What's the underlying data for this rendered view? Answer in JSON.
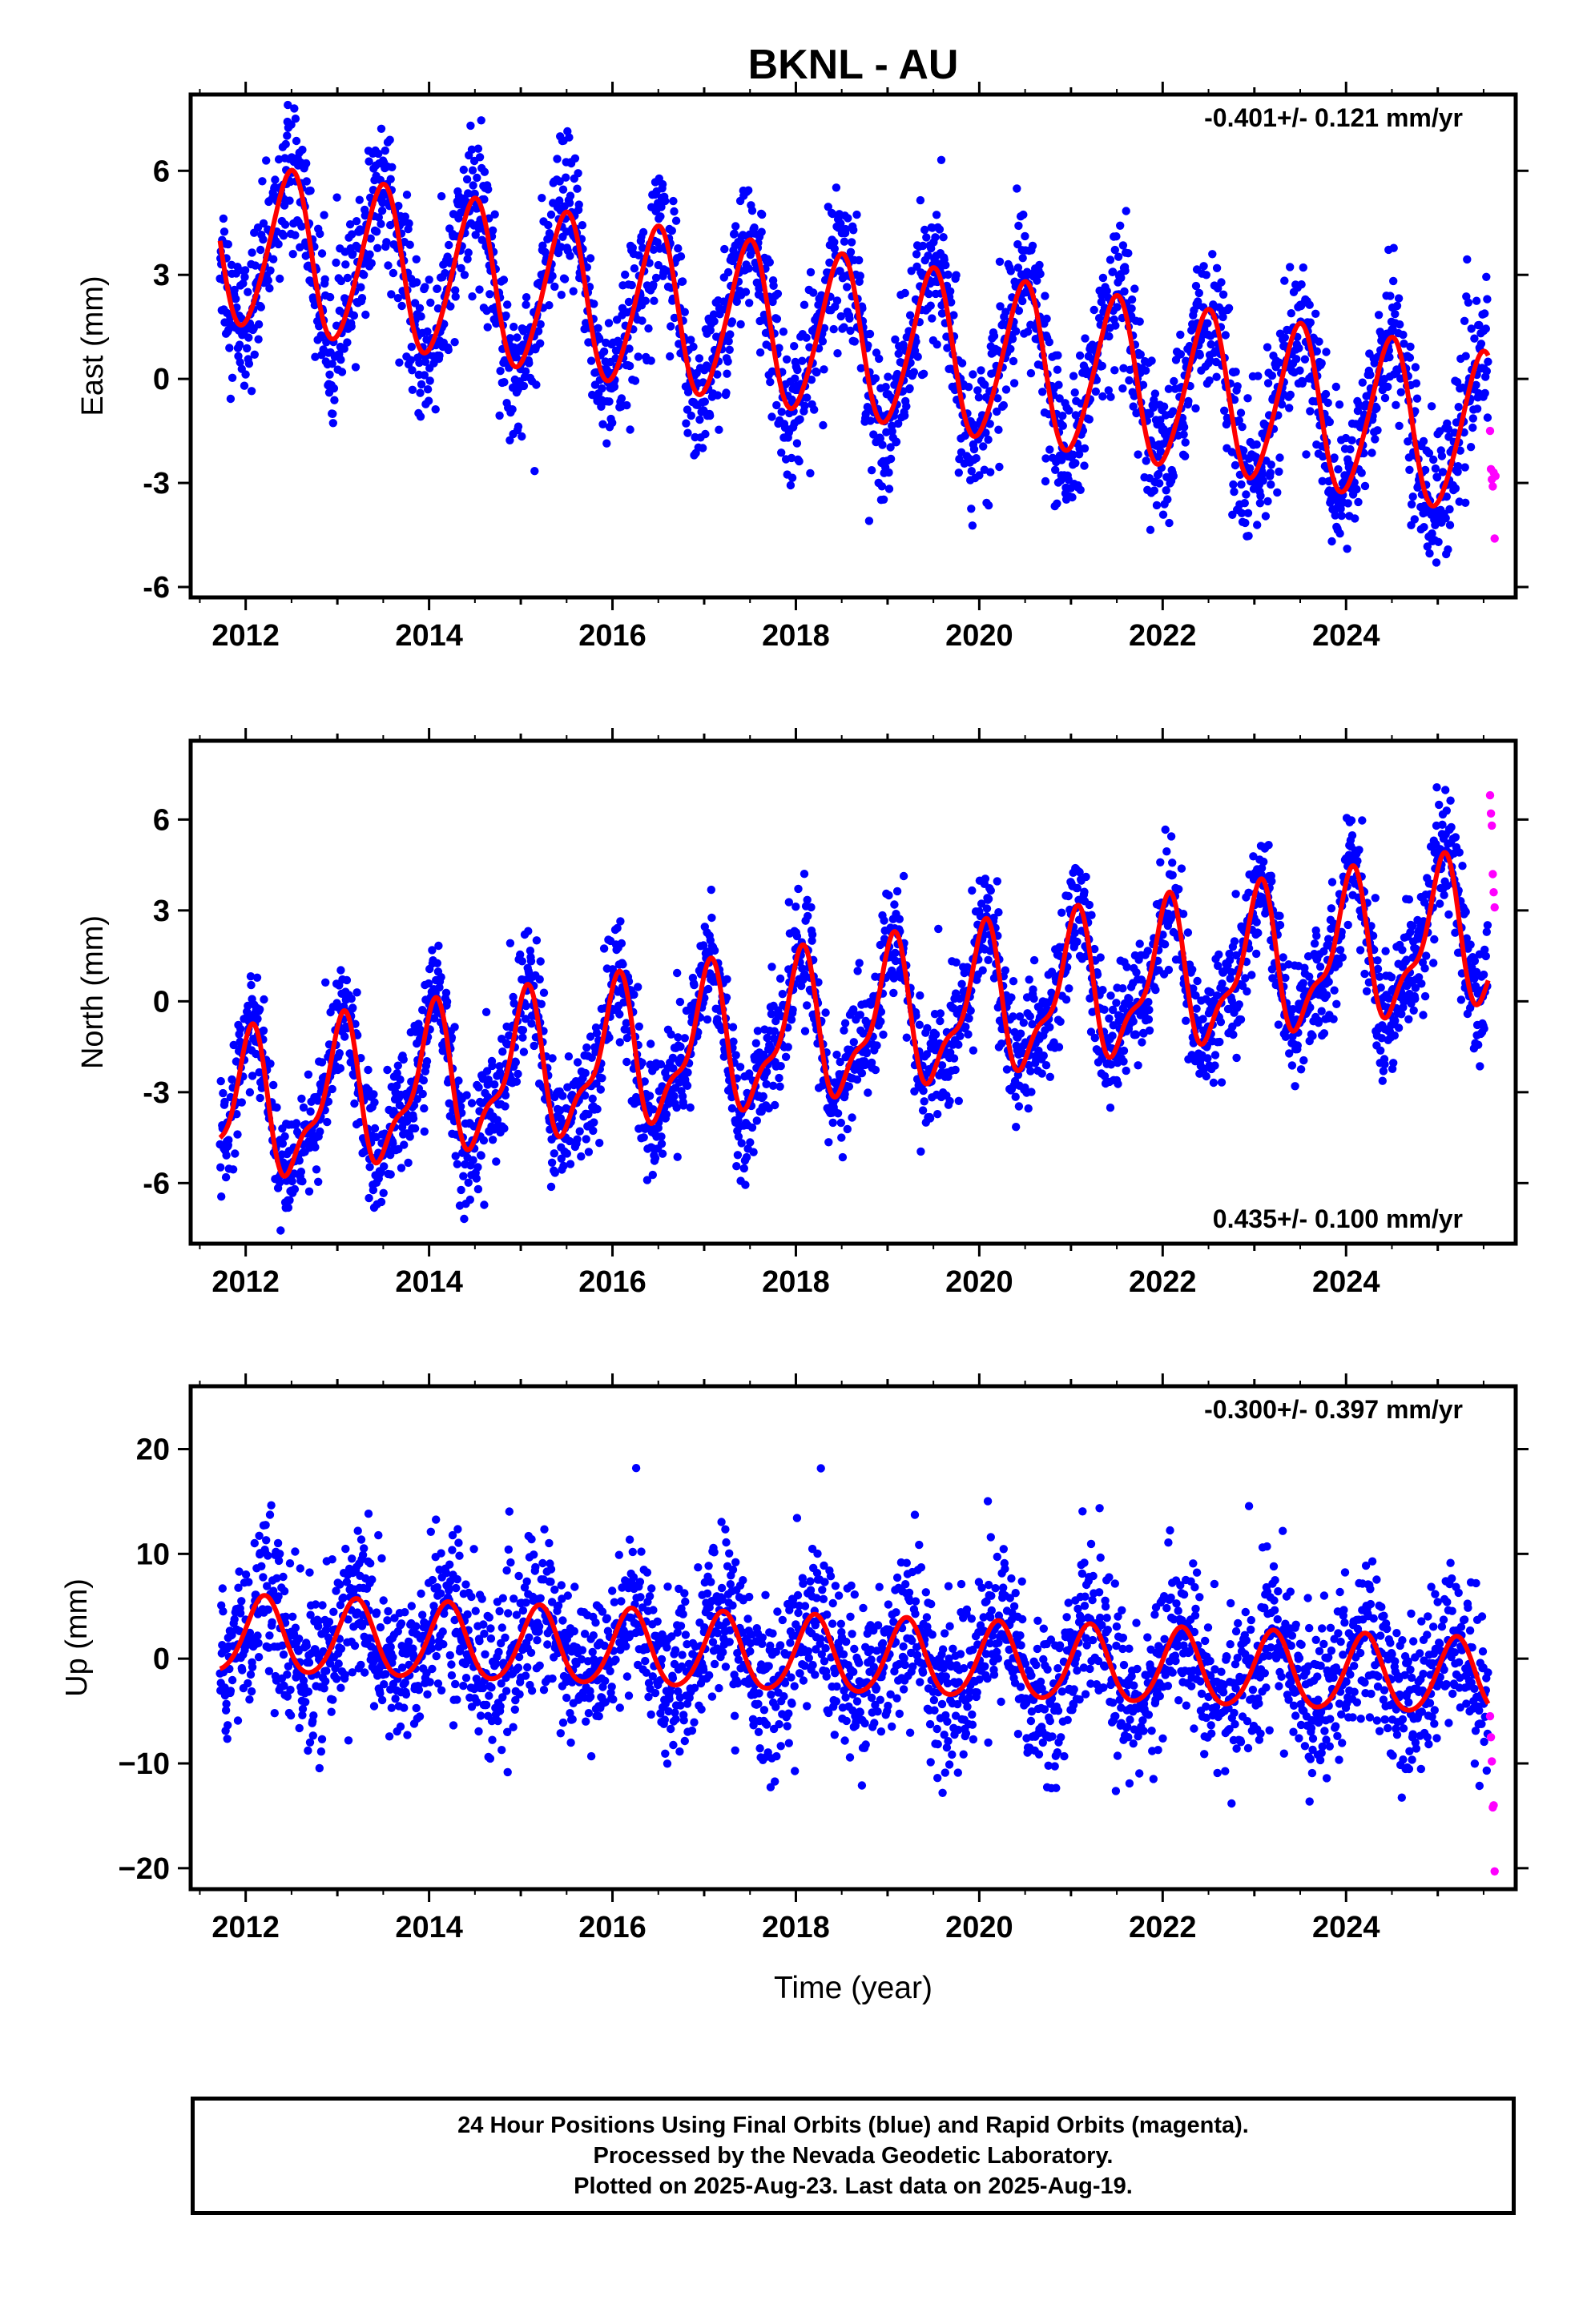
{
  "title": "BKNL - AU",
  "xlabel": "Time (year)",
  "footer": {
    "line1": "24 Hour Positions Using Final Orbits (blue) and Rapid Orbits (magenta).",
    "line2": "Processed by the Nevada Geodetic Laboratory.",
    "line3": "Plotted on 2025-Aug-23. Last data on 2025-Aug-19."
  },
  "colors": {
    "final": "#0000ff",
    "rapid": "#ff00ff",
    "model": "#ff0000",
    "frame": "#000000"
  },
  "chart_data": [
    {
      "type": "scatter",
      "component": "east",
      "ylabel": "East (mm)",
      "annotation": "-0.401+/- 0.121 mm/yr",
      "annotation_position": "top-right",
      "xlim": [
        2011.4,
        2025.85
      ],
      "ylim": [
        -6.3,
        8.2
      ],
      "xticks": [
        "2012",
        "2014",
        "2016",
        "2018",
        "2020",
        "2022",
        "2024"
      ],
      "yticks": [
        "6",
        "3",
        "0",
        "-3",
        "-6"
      ],
      "start": 2011.72,
      "end": 2025.55,
      "model": {
        "offset": 3.9,
        "trend": -0.401,
        "annual_amp": 2.3,
        "annual_phase": 0.23,
        "semiannual_amp": 0.25,
        "semiannual_phase": 0.45
      },
      "scatter_sd": 1.05,
      "series": [
        {
          "name": "Final Orbits (blue)",
          "points": "final",
          "sample_x": [
            2012.0,
            2014.0,
            2016.0,
            2018.0,
            2020.0,
            2022.0,
            2024.0
          ],
          "sample_y": [
            3.5,
            2.6,
            0.8,
            0.6,
            0.4,
            -0.3,
            -1.8
          ]
        },
        {
          "name": "Rapid Orbits (magenta)",
          "points": "rapid",
          "x": [
            2025.57,
            2025.58,
            2025.59,
            2025.6,
            2025.61,
            2025.62,
            2025.63
          ],
          "y": [
            -1.5,
            -2.6,
            -2.9,
            -3.1,
            -2.7,
            -4.6,
            -2.8
          ]
        },
        {
          "name": "model",
          "points": "line"
        }
      ]
    },
    {
      "type": "scatter",
      "component": "north",
      "ylabel": "North (mm)",
      "annotation": "0.435+/- 0.100 mm/yr",
      "annotation_position": "bottom-right",
      "xlim": [
        2011.4,
        2025.85
      ],
      "ylim": [
        -8.0,
        8.6
      ],
      "xticks": [
        "2012",
        "2014",
        "2016",
        "2018",
        "2020",
        "2022",
        "2024"
      ],
      "yticks": [
        "6",
        "3",
        "0",
        "-3",
        "-6"
      ],
      "start": 2011.72,
      "end": 2025.55,
      "model": {
        "offset": -3.8,
        "trend": 0.435,
        "annual_amp": 2.2,
        "annual_phase": 0.78,
        "semiannual_amp": 0.85,
        "semiannual_phase": 0.48
      },
      "scatter_sd": 1.0,
      "series": [
        {
          "name": "Final Orbits (blue)",
          "points": "final",
          "sample_x": [
            2012.0,
            2014.0,
            2016.0,
            2018.0,
            2020.0,
            2022.0,
            2024.0
          ],
          "sample_y": [
            -4.6,
            -3.4,
            -2.5,
            -1.8,
            -1.0,
            -0.3,
            0.6
          ]
        },
        {
          "name": "Rapid Orbits (magenta)",
          "points": "rapid",
          "x": [
            2025.57,
            2025.58,
            2025.59,
            2025.6,
            2025.61,
            2025.62
          ],
          "y": [
            6.8,
            6.2,
            5.8,
            4.2,
            3.6,
            3.1
          ]
        },
        {
          "name": "model",
          "points": "line"
        }
      ]
    },
    {
      "type": "scatter",
      "component": "up",
      "ylabel": "Up (mm)",
      "annotation": "-0.300+/- 0.397 mm/yr",
      "annotation_position": "top-right",
      "xlim": [
        2011.4,
        2025.85
      ],
      "ylim": [
        -22,
        26
      ],
      "xticks": [
        "2012",
        "2014",
        "2016",
        "2018",
        "2020",
        "2022",
        "2024"
      ],
      "yticks": [
        "20",
        "10",
        "0",
        "−10",
        "−20"
      ],
      "start": 2011.72,
      "end": 2025.55,
      "model": {
        "offset": 2.2,
        "trend": -0.3,
        "annual_amp": 3.6,
        "annual_phase": 0.95,
        "semiannual_amp": 0.4,
        "semiannual_phase": 0.1
      },
      "scatter_sd": 3.8,
      "series": [
        {
          "name": "Final Orbits (blue)",
          "points": "final",
          "sample_x": [
            2012.0,
            2014.0,
            2016.0,
            2018.0,
            2020.0,
            2022.0,
            2024.0
          ],
          "sample_y": [
            3.5,
            3.0,
            1.5,
            0.5,
            0.0,
            -1.0,
            -1.5
          ]
        },
        {
          "name": "Rapid Orbits (magenta)",
          "points": "rapid",
          "x": [
            2025.57,
            2025.58,
            2025.59,
            2025.6,
            2025.61,
            2025.62
          ],
          "y": [
            -5.5,
            -7.5,
            -9.8,
            -14.2,
            -14.0,
            -20.3
          ]
        },
        {
          "name": "model",
          "points": "line"
        }
      ]
    }
  ]
}
